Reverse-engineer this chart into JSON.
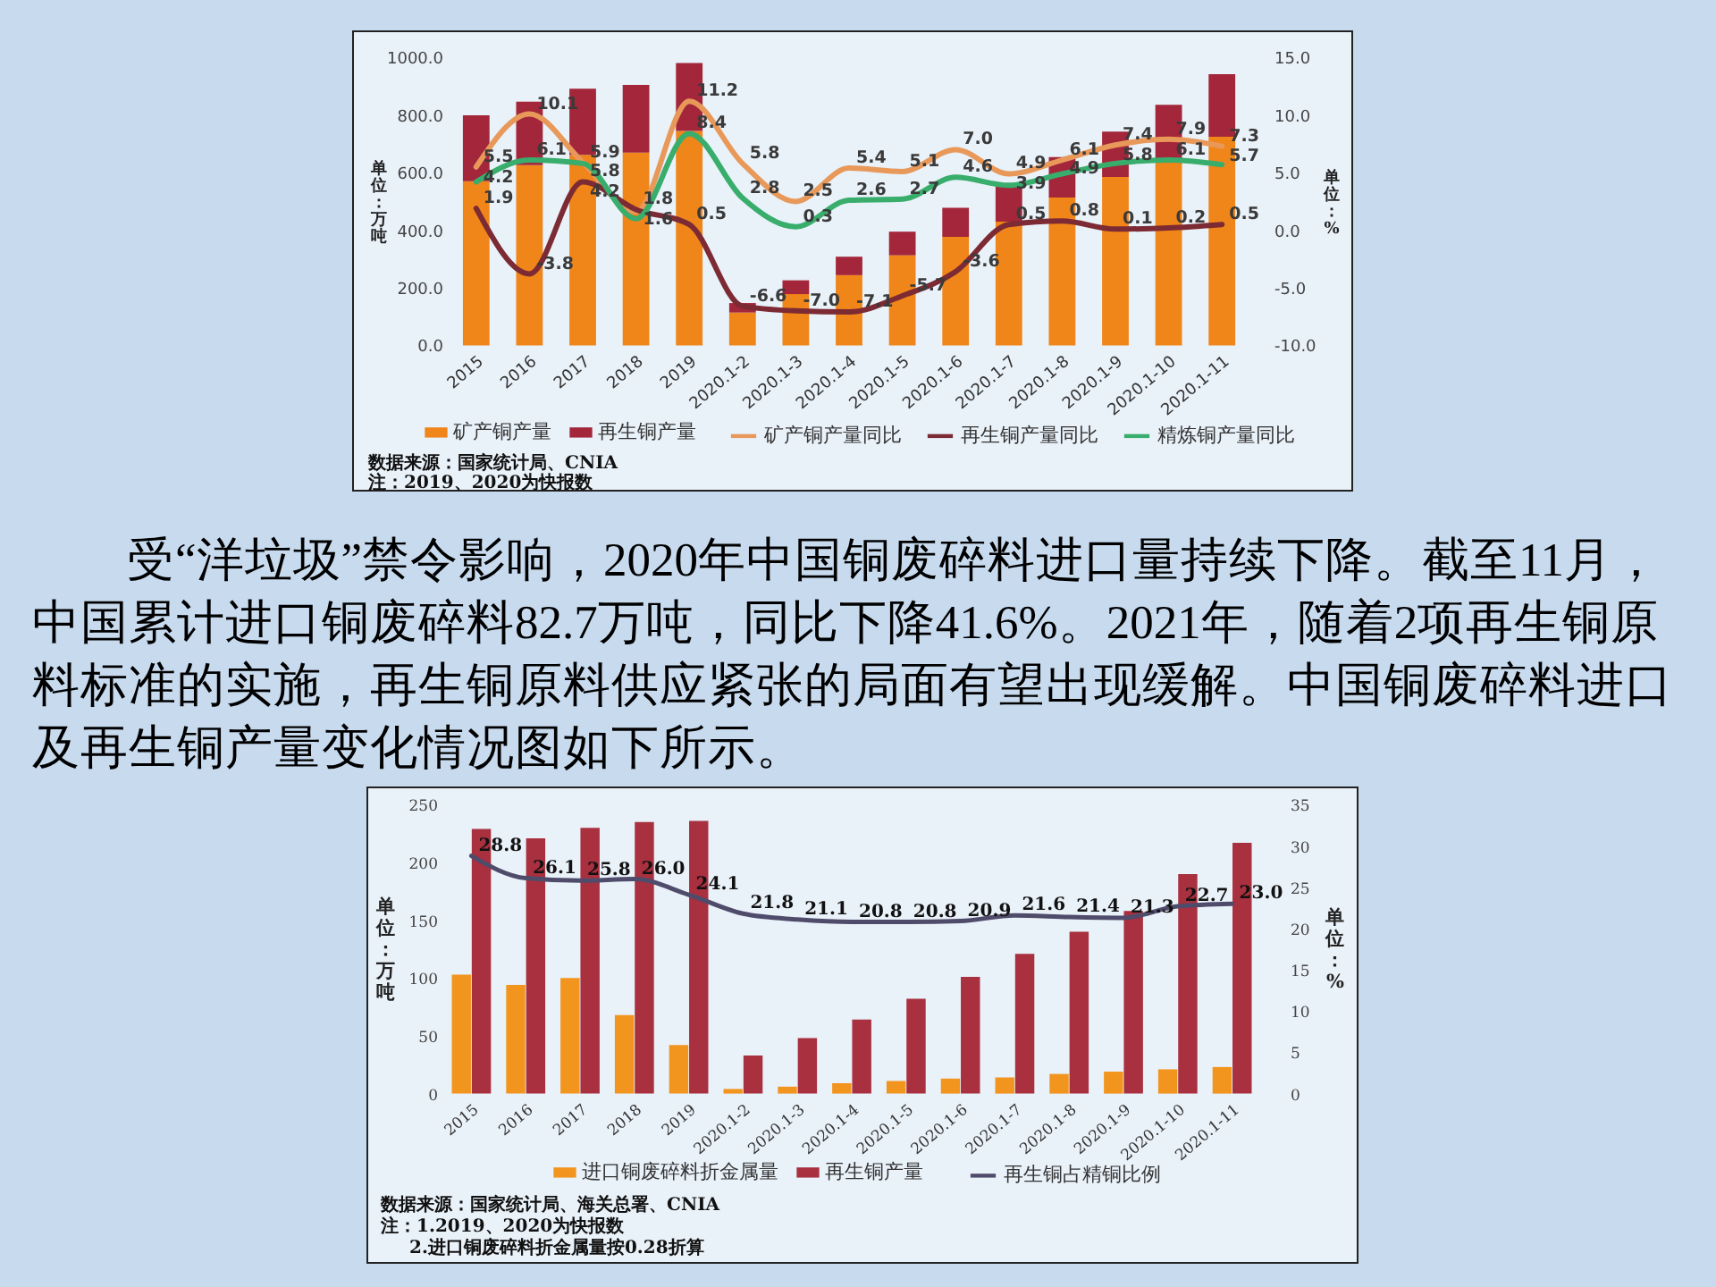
{
  "chart_data": [
    {
      "type": "bar",
      "stacked": true,
      "categories": [
        "2015",
        "2016",
        "2017",
        "2018",
        "2019",
        "2020.1-2",
        "2020.1-3",
        "2020.1-4",
        "2020.1-5",
        "2020.1-6",
        "2020.1-7",
        "2020.1-8",
        "2020.1-9",
        "2020.1-10",
        "2020.1-11"
      ],
      "series": [
        {
          "name": "矿产铜产量",
          "color": "#f0851a",
          "values": [
            570,
            626,
            662,
            670,
            745,
            114,
            178,
            244,
            313,
            377,
            430,
            514,
            585,
            646,
            725
          ]
        },
        {
          "name": "再生铜产量",
          "color": "#a3263a",
          "values": [
            229,
            221,
            230,
            235,
            236,
            33,
            48,
            64,
            82,
            101,
            121,
            140,
            158,
            190,
            217
          ]
        },
        {
          "name": "矿产铜产量同比",
          "type": "line",
          "axis": "y2",
          "color": "#e8995a",
          "values": [
            5.5,
            10.1,
            5.9,
            1.6,
            11.2,
            5.8,
            2.5,
            5.4,
            5.1,
            7.0,
            4.9,
            6.1,
            7.4,
            7.9,
            7.3
          ],
          "value_labels": [
            "5.5",
            "10.1",
            "5.9",
            "1.6",
            "11.2",
            "5.8",
            "2.5",
            "5.4",
            "5.1",
            "7.0",
            "4.9",
            "6.1",
            "7.4",
            "7.9",
            "7.3"
          ]
        },
        {
          "name": "再生铜产量同比",
          "type": "line",
          "axis": "y2",
          "color": "#7c2a33",
          "values": [
            1.9,
            -3.8,
            4.2,
            1.8,
            0.5,
            -6.6,
            -7.0,
            -7.1,
            -5.7,
            -3.6,
            0.5,
            0.8,
            0.1,
            0.2,
            0.5
          ],
          "value_labels": [
            "1.9",
            "-3.8",
            "4.2",
            "1.8",
            "0.5",
            "-6.6",
            "-7.0",
            "-7.1",
            "-5.7",
            "-3.6",
            "0.5",
            "0.8",
            "0.1",
            "0.2",
            "0.5"
          ]
        },
        {
          "name": "精炼铜产量同比",
          "type": "line",
          "axis": "y2",
          "color": "#38ad6c",
          "values": [
            4.2,
            6.1,
            5.8,
            1.0,
            8.4,
            2.8,
            0.3,
            2.6,
            2.7,
            4.6,
            3.9,
            4.9,
            5.8,
            6.1,
            5.7
          ],
          "value_labels": [
            "4.2",
            "6.1",
            "5.8",
            null,
            "8.4",
            "2.8",
            "0.3",
            "2.6",
            "2.7",
            "4.6",
            "3.9",
            "4.9",
            "5.8",
            "6.1",
            "5.7"
          ]
        }
      ],
      "ylim": [
        0,
        1000
      ],
      "yticks": [
        {
          "value": 0,
          "label": "0.0"
        },
        {
          "value": 200,
          "label": "200.0"
        },
        {
          "value": 400,
          "label": "400.0"
        },
        {
          "value": 600,
          "label": "600.0"
        },
        {
          "value": 800,
          "label": "800.0"
        },
        {
          "value": 1000,
          "label": "1000.0"
        }
      ],
      "y2lim": [
        -10,
        15
      ],
      "y2ticks": [
        {
          "value": -10,
          "label": "-10.0"
        },
        {
          "value": -5,
          "label": "-5.0"
        },
        {
          "value": 0,
          "label": "0.0"
        },
        {
          "value": 5,
          "label": "5.0"
        },
        {
          "value": 10,
          "label": "10.0"
        },
        {
          "value": 15,
          "label": "15.0"
        }
      ],
      "ylabel": "单位：万吨",
      "y2label": "单位：%",
      "legend": "bottom",
      "grid": false,
      "annotations": [
        "数据来源：国家统计局、CNIA",
        "注：2019、2020为快报数"
      ]
    },
    {
      "type": "other",
      "annotations": [
        "受“洋垃圾”禁令影响，2020年中国铜废碎料进口量持续下降。截至11月，中国累计进口铜废碎料82.7万吨，同比下降41.6%。2021年，随着2项再生铜原料标准的实施，再生铜原料供应紧张的局面有望出现缓解。中国铜废碎料进口及再生铜产量变化情况图如下所示。"
      ]
    },
    {
      "type": "bar",
      "categories": [
        "2015",
        "2016",
        "2017",
        "2018",
        "2019",
        "2020.1-2",
        "2020.1-3",
        "2020.1-4",
        "2020.1-5",
        "2020.1-6",
        "2020.1-7",
        "2020.1-8",
        "2020.1-9",
        "2020.1-10",
        "2020.1-11"
      ],
      "series": [
        {
          "name": "进口铜废碎料折金属量",
          "color": "#f2951f",
          "values": [
            103,
            94,
            100,
            68,
            42,
            4,
            6,
            9,
            11,
            13,
            14,
            17,
            19,
            21,
            23
          ]
        },
        {
          "name": "再生铜产量",
          "color": "#a8303f",
          "values": [
            229,
            221,
            230,
            235,
            236,
            33,
            48,
            64,
            82,
            101,
            121,
            140,
            158,
            190,
            217
          ]
        },
        {
          "name": "再生铜占精铜比例",
          "type": "line",
          "axis": "y2",
          "color": "#4f4b6b",
          "values": [
            28.8,
            26.1,
            25.8,
            26.0,
            24.1,
            21.8,
            21.1,
            20.8,
            20.8,
            20.9,
            21.6,
            21.4,
            21.3,
            22.7,
            23.0
          ],
          "value_labels": [
            "28.8",
            "26.1",
            "25.8",
            "26.0",
            "24.1",
            "21.8",
            "21.1",
            "20.8",
            "20.8",
            "20.9",
            "21.6",
            "21.4",
            "21.3",
            "22.7",
            "23.0"
          ]
        }
      ],
      "ylim": [
        0,
        250
      ],
      "yticks": [
        0,
        50,
        100,
        150,
        200,
        250
      ],
      "y2lim": [
        0,
        35
      ],
      "y2ticks": [
        0,
        5,
        10,
        15,
        20,
        25,
        30,
        35
      ],
      "ylabel": "单位：万吨",
      "y2label": "单位：%",
      "legend": "bottom",
      "grid": false,
      "annotations": [
        "数据来源：国家统计局、海关总署、CNIA",
        "注：1.2019、2020为快报数",
        "2.进口铜废碎料折金属量按0.28折算"
      ]
    }
  ]
}
